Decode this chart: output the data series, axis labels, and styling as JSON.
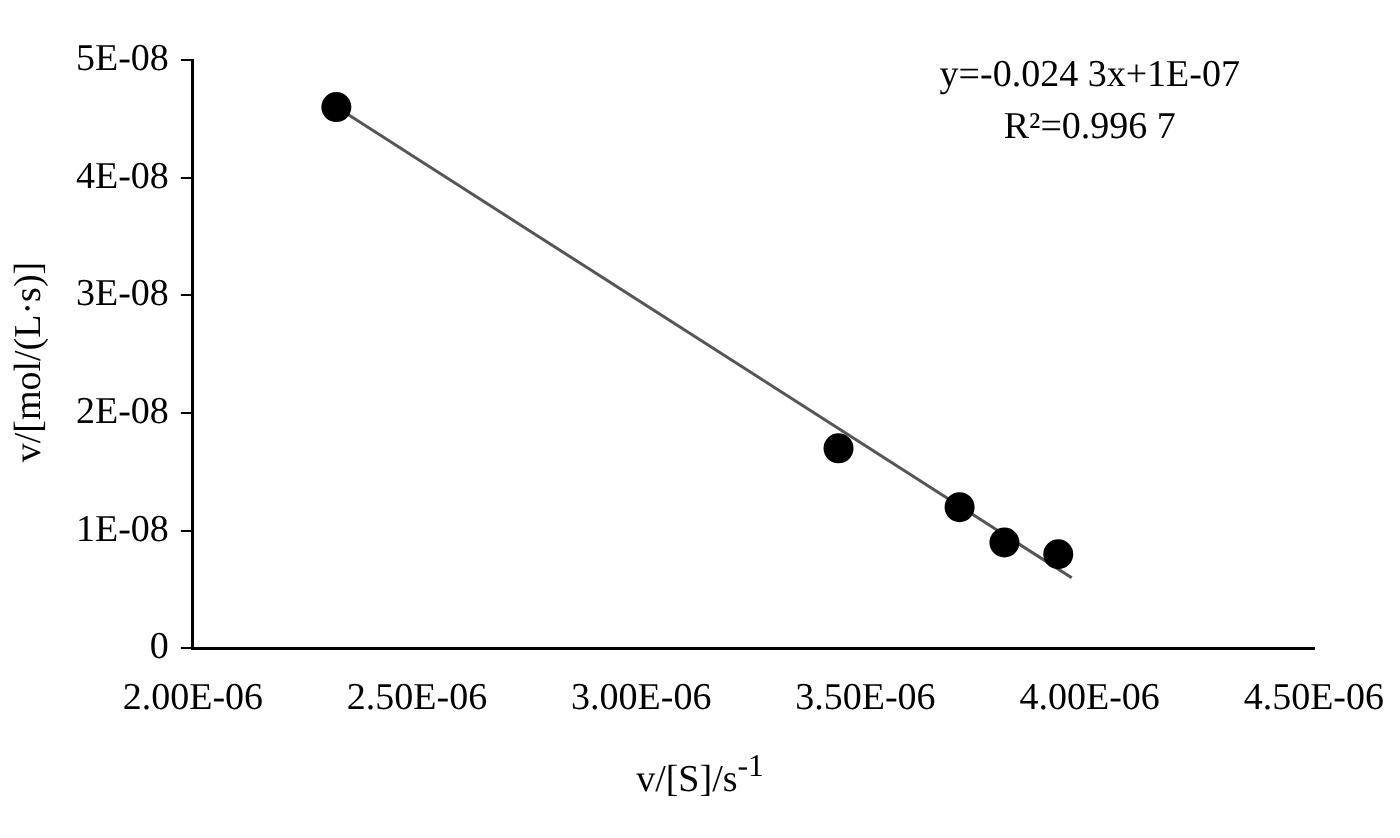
{
  "chart_data": {
    "type": "scatter",
    "xlabel": "v/[S]/s$^{-1}$",
    "ylabel": "v/[mol/(L·s)]",
    "annotations": [
      "y=-0.024 3x+1E-07",
      "R²=0.996 7"
    ],
    "series": [
      {
        "type": "scatter",
        "color": "#000000",
        "x": [
          2.32e-06,
          3.44e-06,
          3.71e-06,
          3.81e-06,
          3.93e-06
        ],
        "values": [
          4.6e-08,
          1.7e-08,
          1.2e-08,
          9e-09,
          8e-09
        ],
        "marker": "circle"
      },
      {
        "type": "line",
        "color": "#555555",
        "x": [
          2.32e-06,
          3.96e-06
        ],
        "values": [
          4.6e-08,
          6e-09
        ],
        "marker": "none",
        "line_style": "solid"
      }
    ],
    "xlim": [
      2e-06,
      4.5e-06
    ],
    "xticks": [
      {
        "value": 2e-06,
        "label": "2.00E-06"
      },
      {
        "value": 2.5e-06,
        "label": "2.50E-06"
      },
      {
        "value": 3e-06,
        "label": "3.00E-06"
      },
      {
        "value": 3.5e-06,
        "label": "3.50E-06"
      },
      {
        "value": 4e-06,
        "label": "4.00E-06"
      },
      {
        "value": 4.5e-06,
        "label": "4.50E-06"
      }
    ],
    "ylim": [
      0,
      5e-08
    ],
    "yticks": [
      0,
      {
        "value": 1e-08,
        "label": "1E-08"
      },
      {
        "value": 2e-08,
        "label": "2E-08"
      },
      {
        "value": 3e-08,
        "label": "3E-08"
      },
      {
        "value": 4e-08,
        "label": "4E-08"
      },
      {
        "value": 5e-08,
        "label": "5E-08"
      }
    ],
    "grid": false,
    "legend": false
  }
}
